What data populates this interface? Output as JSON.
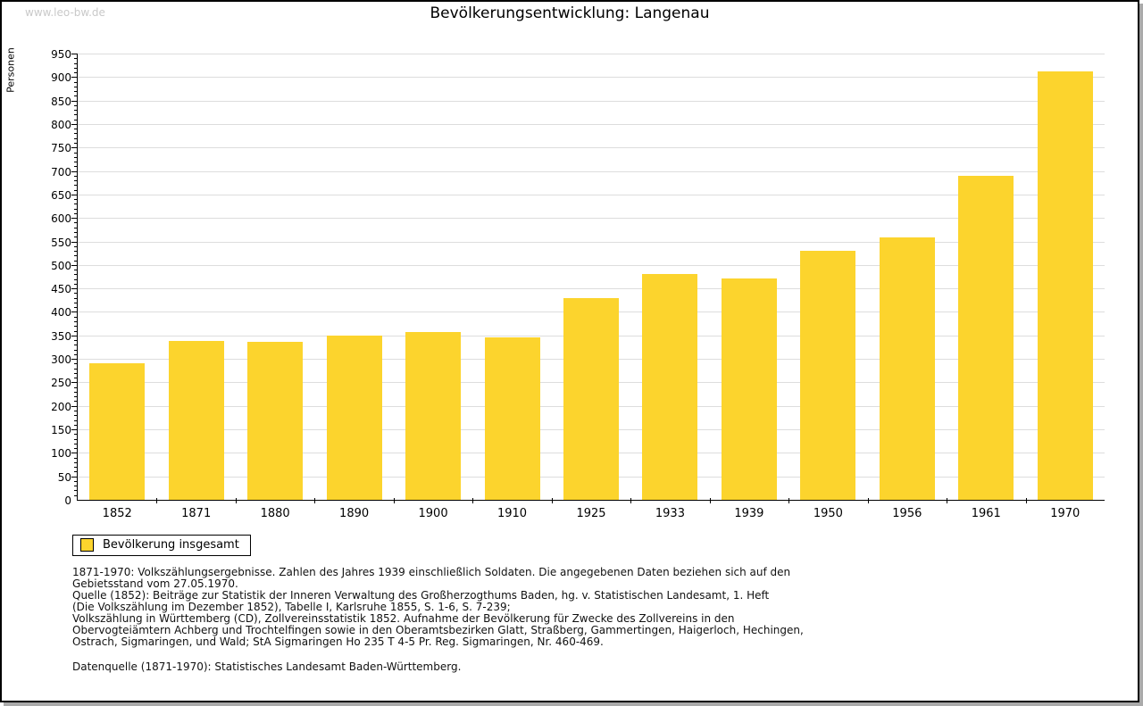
{
  "watermark": "www.leo-bw.de",
  "title": "Bevölkerungsentwicklung: Langenau",
  "colors": {
    "bar": "#FCD42D",
    "grid": "#DDDDDD",
    "axis": "#000000",
    "watermark": "#C9C9C9",
    "shadow": "#AAAAAA"
  },
  "chart_data": {
    "type": "bar",
    "title": "Bevölkerungsentwicklung: Langenau",
    "categories": [
      "1852",
      "1871",
      "1880",
      "1890",
      "1900",
      "1910",
      "1925",
      "1933",
      "1939",
      "1950",
      "1956",
      "1961",
      "1970"
    ],
    "values": [
      291,
      339,
      337,
      349,
      358,
      345,
      430,
      481,
      472,
      530,
      559,
      689,
      912
    ],
    "series_name": "Bevölkerung insgesamt",
    "xlabel": "",
    "ylabel": "Personen",
    "ylim": [
      0,
      950
    ],
    "y_tick_step": 50,
    "y_minor_tick_step": 10,
    "grid": true,
    "legend_position": "bottom-left",
    "bar_color": "#FCD42D"
  },
  "legend": {
    "label": "Bevölkerung insgesamt"
  },
  "notes": {
    "lines": [
      "1871-1970: Volkszählungsergebnisse. Zahlen des Jahres 1939 einschließlich Soldaten. Die angegebenen Daten beziehen sich auf den",
      "Gebietsstand vom 27.05.1970.",
      "Quelle (1852): Beiträge zur Statistik der Inneren Verwaltung des Großherzogthums Baden, hg. v. Statistischen Landesamt, 1. Heft",
      "(Die Volkszählung im Dezember 1852), Tabelle I, Karlsruhe 1855, S. 1-6, S. 7-239;",
      "Volkszählung in Württemberg (CD), Zollvereinsstatistik 1852. Aufnahme der Bevölkerung für Zwecke des Zollvereins in den",
      "Obervogteiämtern Achberg und Trochtelfingen sowie in den Oberamtsbezirken Glatt, Straßberg, Gammertingen, Haigerloch, Hechingen,",
      "Ostrach, Sigmaringen, und Wald; StA Sigmaringen Ho 235 T 4-5 Pr. Reg. Sigmaringen, Nr. 460-469."
    ]
  },
  "datasource": "Datenquelle (1871-1970): Statistisches Landesamt Baden-Württemberg."
}
